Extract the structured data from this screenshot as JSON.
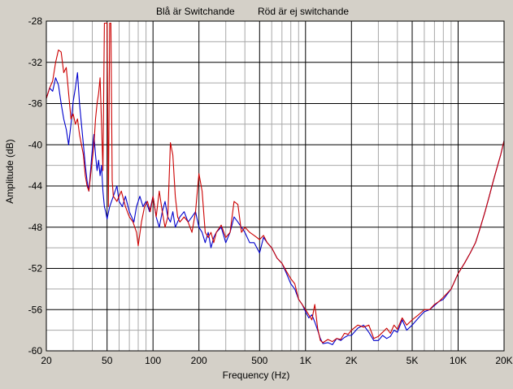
{
  "chart_data": {
    "type": "line",
    "title_left": "Blå är Switchande",
    "title_right": "Röd är ej switchande",
    "xlabel": "Frequency (Hz)",
    "ylabel": "Amplitude (dB)",
    "x_scale": "log",
    "xlim": [
      20,
      20000
    ],
    "ylim": [
      -60,
      -28
    ],
    "grid": true,
    "legend": "none",
    "x_ticks": [
      {
        "value": 20,
        "label": "20"
      },
      {
        "value": 50,
        "label": "50"
      },
      {
        "value": 100,
        "label": "100"
      },
      {
        "value": 200,
        "label": "200"
      },
      {
        "value": 500,
        "label": "500"
      },
      {
        "value": 1000,
        "label": "1K"
      },
      {
        "value": 2000,
        "label": "2K"
      },
      {
        "value": 5000,
        "label": "5K"
      },
      {
        "value": 10000,
        "label": "10K"
      },
      {
        "value": 20000,
        "label": "20K"
      }
    ],
    "x_minor_ticks": [
      30,
      40,
      60,
      70,
      80,
      90,
      300,
      400,
      600,
      700,
      800,
      900,
      3000,
      4000,
      6000,
      7000,
      8000,
      9000
    ],
    "y_ticks": [
      {
        "value": -28,
        "label": "-28"
      },
      {
        "value": -32,
        "label": "-32"
      },
      {
        "value": -36,
        "label": "-36"
      },
      {
        "value": -40,
        "label": "-40"
      },
      {
        "value": -44,
        "label": "-44"
      },
      {
        "value": -48,
        "label": "-48"
      },
      {
        "value": -52,
        "label": "-52"
      },
      {
        "value": -56,
        "label": "-56"
      },
      {
        "value": -60,
        "label": "-60"
      }
    ],
    "y_minor_ticks": [
      -30,
      -34,
      -38,
      -42,
      -46,
      -50,
      -54,
      -58
    ],
    "series": [
      {
        "color": "#0000cc",
        "points": [
          [
            20,
            -35.5
          ],
          [
            21,
            -34.5
          ],
          [
            22,
            -34.8
          ],
          [
            23,
            -33.5
          ],
          [
            24,
            -34.2
          ],
          [
            25,
            -36
          ],
          [
            26,
            -37.5
          ],
          [
            27,
            -38.5
          ],
          [
            28,
            -40
          ],
          [
            29,
            -38
          ],
          [
            30,
            -35.8
          ],
          [
            31,
            -34.5
          ],
          [
            32,
            -33
          ],
          [
            33,
            -36
          ],
          [
            34,
            -38
          ],
          [
            35,
            -40
          ],
          [
            36,
            -42
          ],
          [
            37,
            -43.5
          ],
          [
            38,
            -44.5
          ],
          [
            39,
            -42.5
          ],
          [
            40,
            -40.5
          ],
          [
            41,
            -39
          ],
          [
            42,
            -41
          ],
          [
            43,
            -42.5
          ],
          [
            44,
            -41.5
          ],
          [
            45,
            -43
          ],
          [
            46,
            -42
          ],
          [
            47,
            -44.5
          ],
          [
            48,
            -46
          ],
          [
            49,
            -46.5
          ],
          [
            50,
            -47.2
          ],
          [
            52,
            -46
          ],
          [
            55,
            -45
          ],
          [
            58,
            -44
          ],
          [
            60,
            -45.5
          ],
          [
            63,
            -46
          ],
          [
            66,
            -45
          ],
          [
            70,
            -46.5
          ],
          [
            75,
            -47.5
          ],
          [
            78,
            -46
          ],
          [
            82,
            -45
          ],
          [
            86,
            -46
          ],
          [
            90,
            -45.5
          ],
          [
            95,
            -46.5
          ],
          [
            100,
            -45
          ],
          [
            105,
            -47
          ],
          [
            110,
            -48
          ],
          [
            115,
            -46.5
          ],
          [
            120,
            -45.5
          ],
          [
            125,
            -47
          ],
          [
            130,
            -47.5
          ],
          [
            135,
            -46.5
          ],
          [
            140,
            -48
          ],
          [
            150,
            -47
          ],
          [
            160,
            -46.5
          ],
          [
            170,
            -47.5
          ],
          [
            180,
            -47
          ],
          [
            190,
            -46.5
          ],
          [
            200,
            -48
          ],
          [
            210,
            -48.5
          ],
          [
            220,
            -49.5
          ],
          [
            230,
            -48.5
          ],
          [
            240,
            -50
          ],
          [
            250,
            -49
          ],
          [
            260,
            -48.5
          ],
          [
            280,
            -48
          ],
          [
            300,
            -49.5
          ],
          [
            320,
            -48.5
          ],
          [
            340,
            -47
          ],
          [
            360,
            -47.5
          ],
          [
            380,
            -48
          ],
          [
            400,
            -48.5
          ],
          [
            430,
            -49.5
          ],
          [
            460,
            -49.5
          ],
          [
            500,
            -50.5
          ],
          [
            530,
            -49
          ],
          [
            560,
            -49.5
          ],
          [
            600,
            -50
          ],
          [
            650,
            -51
          ],
          [
            700,
            -51.5
          ],
          [
            750,
            -52.5
          ],
          [
            800,
            -53.5
          ],
          [
            850,
            -54
          ],
          [
            900,
            -55
          ],
          [
            950,
            -55.5
          ],
          [
            1000,
            -56.2
          ],
          [
            1050,
            -56.8
          ],
          [
            1100,
            -56.5
          ],
          [
            1150,
            -57.2
          ],
          [
            1200,
            -58
          ],
          [
            1250,
            -58.8
          ],
          [
            1300,
            -59.3
          ],
          [
            1400,
            -59.2
          ],
          [
            1500,
            -59.4
          ],
          [
            1600,
            -58.8
          ],
          [
            1700,
            -59
          ],
          [
            1800,
            -58.7
          ],
          [
            1900,
            -58.5
          ],
          [
            2000,
            -58.5
          ],
          [
            2200,
            -57.8
          ],
          [
            2400,
            -57.5
          ],
          [
            2600,
            -58.2
          ],
          [
            2800,
            -59
          ],
          [
            3000,
            -59
          ],
          [
            3200,
            -58.5
          ],
          [
            3400,
            -58.8
          ],
          [
            3600,
            -58.6
          ],
          [
            3800,
            -58
          ],
          [
            4000,
            -58.2
          ],
          [
            4300,
            -57
          ],
          [
            4600,
            -58
          ],
          [
            5000,
            -57.5
          ],
          [
            5500,
            -56.8
          ],
          [
            6000,
            -56.2
          ],
          [
            6500,
            -56
          ],
          [
            7000,
            -55.6
          ],
          [
            7500,
            -55.2
          ],
          [
            8000,
            -55
          ],
          [
            9000,
            -54
          ],
          [
            10000,
            -52.5
          ],
          [
            11000,
            -51.5
          ],
          [
            12000,
            -50.5
          ],
          [
            13000,
            -49.5
          ],
          [
            14000,
            -48
          ],
          [
            15000,
            -46.5
          ],
          [
            16000,
            -45
          ],
          [
            17000,
            -43.5
          ],
          [
            18000,
            -42.2
          ],
          [
            19000,
            -41
          ],
          [
            20000,
            -39.6
          ]
        ]
      },
      {
        "color": "#cc0000",
        "points": [
          [
            20,
            -35.5
          ],
          [
            21,
            -34.5
          ],
          [
            22,
            -33.8
          ],
          [
            23,
            -32
          ],
          [
            24,
            -30.8
          ],
          [
            25,
            -31
          ],
          [
            26,
            -33
          ],
          [
            27,
            -32.5
          ],
          [
            28,
            -35
          ],
          [
            29,
            -37.5
          ],
          [
            30,
            -37
          ],
          [
            31,
            -38
          ],
          [
            32,
            -37.5
          ],
          [
            33,
            -39
          ],
          [
            34,
            -40
          ],
          [
            35,
            -41
          ],
          [
            36,
            -43
          ],
          [
            37,
            -44
          ],
          [
            38,
            -44.5
          ],
          [
            39,
            -43
          ],
          [
            40,
            -41.5
          ],
          [
            41,
            -40
          ],
          [
            42,
            -37.5
          ],
          [
            43,
            -36
          ],
          [
            44,
            -35
          ],
          [
            45,
            -33.5
          ],
          [
            46,
            -38
          ],
          [
            47,
            -42.5
          ],
          [
            48,
            -28.2
          ],
          [
            49,
            -28.2
          ],
          [
            50,
            -28.2
          ],
          [
            51,
            -46
          ],
          [
            52,
            -28.2
          ],
          [
            53,
            -28.2
          ],
          [
            54,
            -43.5
          ],
          [
            55,
            -45
          ],
          [
            58,
            -45.5
          ],
          [
            62,
            -44.5
          ],
          [
            66,
            -46
          ],
          [
            70,
            -47
          ],
          [
            74,
            -47.5
          ],
          [
            78,
            -48.5
          ],
          [
            80,
            -49.8
          ],
          [
            84,
            -47.5
          ],
          [
            88,
            -46
          ],
          [
            92,
            -45.5
          ],
          [
            96,
            -46.5
          ],
          [
            100,
            -45
          ],
          [
            105,
            -47
          ],
          [
            110,
            -44.5
          ],
          [
            115,
            -46.5
          ],
          [
            120,
            -48
          ],
          [
            125,
            -47
          ],
          [
            130,
            -39.8
          ],
          [
            135,
            -41
          ],
          [
            140,
            -45
          ],
          [
            145,
            -47
          ],
          [
            150,
            -47.5
          ],
          [
            160,
            -47
          ],
          [
            170,
            -47.5
          ],
          [
            180,
            -48.5
          ],
          [
            190,
            -46.5
          ],
          [
            200,
            -42.8
          ],
          [
            210,
            -44.5
          ],
          [
            220,
            -48.5
          ],
          [
            230,
            -49
          ],
          [
            240,
            -48.5
          ],
          [
            250,
            -49.5
          ],
          [
            260,
            -48.5
          ],
          [
            280,
            -47.8
          ],
          [
            300,
            -49
          ],
          [
            320,
            -48.5
          ],
          [
            340,
            -45.5
          ],
          [
            360,
            -45.8
          ],
          [
            380,
            -48.5
          ],
          [
            400,
            -48
          ],
          [
            430,
            -48.5
          ],
          [
            460,
            -48.8
          ],
          [
            500,
            -49.2
          ],
          [
            530,
            -48.8
          ],
          [
            560,
            -49.5
          ],
          [
            600,
            -50
          ],
          [
            650,
            -51
          ],
          [
            700,
            -51.5
          ],
          [
            750,
            -52.3
          ],
          [
            800,
            -53
          ],
          [
            850,
            -53.5
          ],
          [
            900,
            -55
          ],
          [
            950,
            -55.5
          ],
          [
            1000,
            -56
          ],
          [
            1050,
            -56.5
          ],
          [
            1100,
            -57
          ],
          [
            1150,
            -55.5
          ],
          [
            1200,
            -57.8
          ],
          [
            1250,
            -59
          ],
          [
            1300,
            -59.2
          ],
          [
            1400,
            -58.9
          ],
          [
            1500,
            -59.1
          ],
          [
            1600,
            -58.8
          ],
          [
            1700,
            -58.9
          ],
          [
            1800,
            -58.3
          ],
          [
            1900,
            -58.4
          ],
          [
            2000,
            -58
          ],
          [
            2200,
            -57.5
          ],
          [
            2400,
            -57.7
          ],
          [
            2600,
            -57.5
          ],
          [
            2800,
            -58.8
          ],
          [
            3000,
            -58.6
          ],
          [
            3200,
            -58.2
          ],
          [
            3400,
            -57.8
          ],
          [
            3600,
            -58.3
          ],
          [
            3800,
            -57.5
          ],
          [
            4000,
            -57.9
          ],
          [
            4300,
            -56.8
          ],
          [
            4600,
            -57.5
          ],
          [
            5000,
            -57
          ],
          [
            5500,
            -56.5
          ],
          [
            6000,
            -56
          ],
          [
            6500,
            -56
          ],
          [
            7000,
            -55.5
          ],
          [
            7500,
            -55.2
          ],
          [
            8000,
            -54.8
          ],
          [
            9000,
            -54
          ],
          [
            10000,
            -52.5
          ],
          [
            11000,
            -51.5
          ],
          [
            12000,
            -50.5
          ],
          [
            13000,
            -49.5
          ],
          [
            14000,
            -48
          ],
          [
            15000,
            -46.5
          ],
          [
            16000,
            -45
          ],
          [
            17000,
            -43.5
          ],
          [
            18000,
            -42.2
          ],
          [
            19000,
            -41
          ],
          [
            20000,
            -39.6
          ]
        ]
      }
    ]
  }
}
